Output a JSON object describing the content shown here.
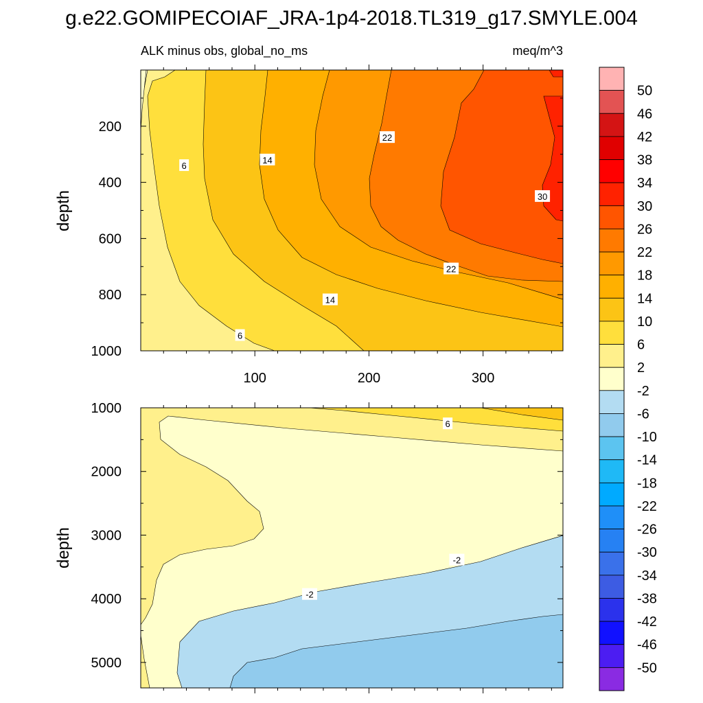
{
  "title": "g.e22.GOMIPECOIAF_JRA-1p4-2018.TL319_g17.SMYLE.004",
  "chart_data": [
    {
      "type": "heatmap",
      "panel": "upper",
      "subtitle_left": "ALK minus obs, global_no_ms",
      "subtitle_right": "meq/m^3",
      "xlabel": "",
      "ylabel": "depth",
      "xlim": [
        0,
        370
      ],
      "ylim": [
        1000,
        0
      ],
      "xticks": [
        100,
        200,
        300
      ],
      "xtick_labels": [
        "100",
        "200",
        "300"
      ],
      "yticks": [
        200,
        400,
        600,
        800,
        1000
      ],
      "ytick_labels": [
        "200",
        "400",
        "600",
        "800",
        "1000"
      ],
      "contour_labels": [
        {
          "text": "6",
          "x": 38,
          "y": 340
        },
        {
          "text": "6",
          "x": 87,
          "y": 945
        },
        {
          "text": "14",
          "x": 111,
          "y": 320
        },
        {
          "text": "14",
          "x": 166,
          "y": 818
        },
        {
          "text": "22",
          "x": 216,
          "y": 240
        },
        {
          "text": "22",
          "x": 272,
          "y": 708
        },
        {
          "text": "30",
          "x": 352,
          "y": 450
        }
      ]
    },
    {
      "type": "heatmap",
      "panel": "lower",
      "xlabel": "",
      "ylabel": "depth",
      "xlim": [
        0,
        370
      ],
      "ylim": [
        5400,
        1000
      ],
      "yticks": [
        1000,
        2000,
        3000,
        4000,
        5000
      ],
      "ytick_labels": [
        "1000",
        "2000",
        "3000",
        "4000",
        "5000"
      ],
      "contour_labels": [
        {
          "text": "6",
          "x": 269,
          "y": 1250
        },
        {
          "text": "-2",
          "x": 148,
          "y": 3930
        },
        {
          "text": "-2",
          "x": 277,
          "y": 3390
        }
      ]
    }
  ],
  "colorbar": {
    "labels": [
      "50",
      "46",
      "42",
      "38",
      "34",
      "30",
      "26",
      "22",
      "18",
      "14",
      "10",
      "6",
      "2",
      "-2",
      "-6",
      "-10",
      "-14",
      "-18",
      "-22",
      "-26",
      "-30",
      "-34",
      "-38",
      "-42",
      "-46",
      "-50"
    ],
    "colors": [
      "#ffb3b3",
      "#e35353",
      "#d41414",
      "#e00000",
      "#ff0000",
      "#ff2200",
      "#ff5500",
      "#ff7a00",
      "#ff9900",
      "#ffb000",
      "#fcc415",
      "#ffdf3c",
      "#fff08c",
      "#ffffcc",
      "#b3dcf2",
      "#91cbed",
      "#5cc4f0",
      "#1fb9f6",
      "#00aaff",
      "#1f8ff8",
      "#2681f3",
      "#3a71ea",
      "#3d5ce3",
      "#2b32ec",
      "#1111ff",
      "#4c1df2",
      "#8a2be2"
    ]
  }
}
